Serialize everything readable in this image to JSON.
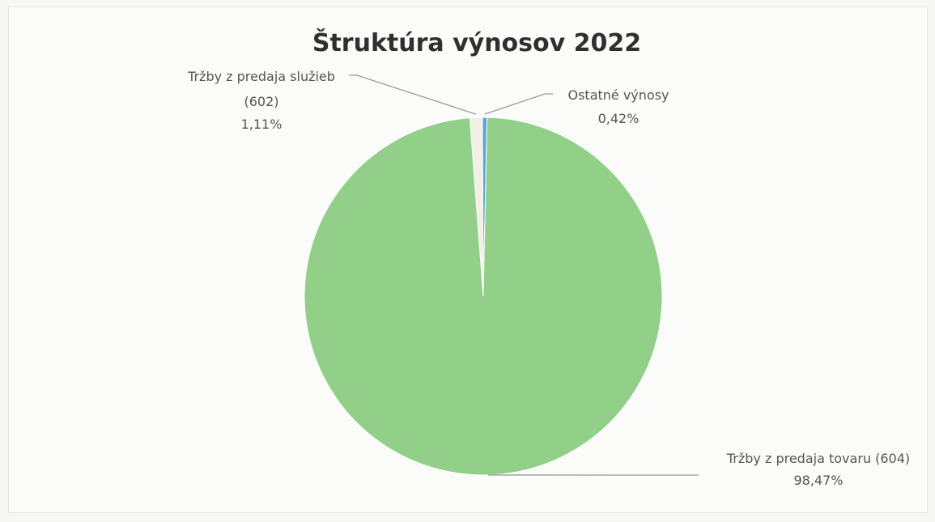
{
  "chart_data": {
    "type": "pie",
    "title": "Štruktúra výnosov 2022",
    "slices": [
      {
        "label": "Tržby z predaja tovaru (604)",
        "value": 98.47,
        "value_label": "98,47%",
        "color": "#92d08a"
      },
      {
        "label": "Tržby z predaja služieb (602)",
        "value": 1.11,
        "value_label": "1,11%",
        "color": "#f2f0e4"
      },
      {
        "label": "Ostatné výnosy",
        "value": 0.42,
        "value_label": "0,42%",
        "color": "#5aa6dc"
      }
    ]
  },
  "colors": {
    "background": "#fbfbfa",
    "leader_line": "#9a9a9a",
    "label_text": "#555555",
    "title_text": "#2f2f2f"
  }
}
